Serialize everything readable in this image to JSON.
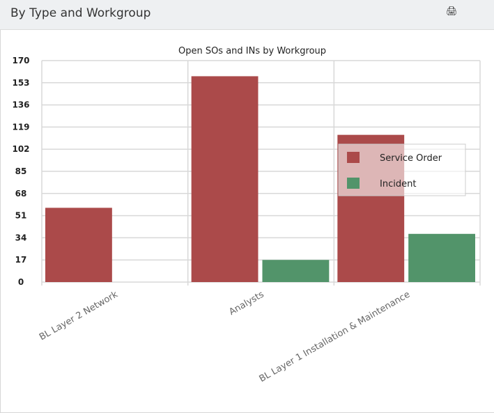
{
  "header": {
    "title": "By Type and Workgroup",
    "print_icon": "print-icon"
  },
  "chart_data": {
    "type": "bar",
    "title": "Open SOs and INs by Workgroup",
    "categories": [
      "BL Layer 2 Network",
      "Analysts",
      "BL Layer 1 Installation & Maintenance"
    ],
    "series": [
      {
        "name": "Service Order",
        "color": "#ab4a4a",
        "values": [
          57,
          158,
          113
        ]
      },
      {
        "name": "Incident",
        "color": "#52946a",
        "values": [
          0,
          17,
          37
        ]
      }
    ],
    "ylim": [
      0,
      170
    ],
    "yticks": [
      "0",
      "17",
      "34",
      "51",
      "68",
      "85",
      "102",
      "119",
      "136",
      "153",
      "170"
    ],
    "grid": true,
    "legend": "right"
  }
}
